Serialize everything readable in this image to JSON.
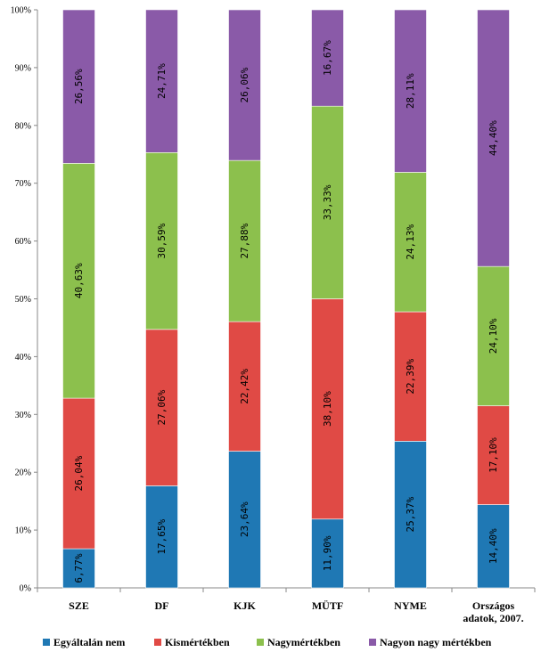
{
  "chart_data": {
    "type": "bar",
    "stacked": true,
    "percent_stacked": true,
    "title": "",
    "xlabel": "",
    "ylabel": "",
    "ylim": [
      0,
      100
    ],
    "y_ticks": [
      "0%",
      "10%",
      "20%",
      "30%",
      "40%",
      "50%",
      "60%",
      "70%",
      "80%",
      "90%",
      "100%"
    ],
    "grid": false,
    "legend_position": "bottom",
    "categories": [
      [
        "SZE"
      ],
      [
        "DF"
      ],
      [
        "KJK"
      ],
      [
        "MÜTF"
      ],
      [
        "NYME"
      ],
      [
        "Országos",
        "adatok, 2007."
      ]
    ],
    "series": [
      {
        "name": "Egyáltalán nem",
        "color": "#1f78b4",
        "values": [
          6.77,
          17.65,
          23.64,
          11.9,
          25.37,
          14.4
        ],
        "labels": [
          "6,77%",
          "17,65%",
          "23,64%",
          "11,90%",
          "25,37%",
          "14,40%"
        ]
      },
      {
        "name": "Kismértékben",
        "color": "#e04a45",
        "values": [
          26.04,
          27.06,
          22.42,
          38.1,
          22.39,
          17.1
        ],
        "labels": [
          "26,04%",
          "27,06%",
          "22,42%",
          "38,10%",
          "22,39%",
          "17,10%"
        ]
      },
      {
        "name": "Nagymértékben",
        "color": "#8cc04d",
        "values": [
          40.63,
          30.59,
          27.88,
          33.33,
          24.13,
          24.1
        ],
        "labels": [
          "40,63%",
          "30,59%",
          "27,88%",
          "33,33%",
          "24,13%",
          "24,10%"
        ]
      },
      {
        "name": "Nagyon nagy mértékben",
        "color": "#8a5aa8",
        "values": [
          26.56,
          24.71,
          26.06,
          16.67,
          28.11,
          44.4
        ],
        "labels": [
          "26,56%",
          "24,71%",
          "26,06%",
          "16,67%",
          "28,11%",
          "44,40%"
        ]
      }
    ]
  }
}
